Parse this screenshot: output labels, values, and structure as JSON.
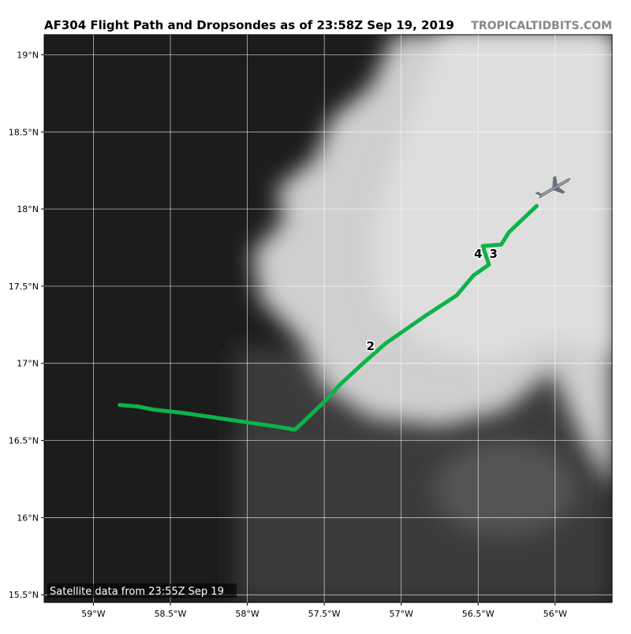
{
  "chart_data": {
    "type": "line",
    "title": "AF304 Flight Path and Dropsondes as of 23:58Z Sep 19, 2019",
    "source": "TROPICALTIDBITS.COM",
    "caption": "Satellite data from 23:55Z Sep 19",
    "x": [
      -58.83,
      -58.71,
      -58.61,
      -58.43,
      -58.22,
      -58.02,
      -57.81,
      -57.69,
      -57.5,
      -57.4,
      -57.27,
      -57.1,
      -56.84,
      -56.64,
      -56.53,
      -56.43,
      -56.47,
      -56.35,
      -56.3,
      -56.12
    ],
    "values": [
      16.73,
      16.72,
      16.7,
      16.68,
      16.65,
      16.62,
      16.59,
      16.57,
      16.75,
      16.86,
      16.98,
      17.13,
      17.31,
      17.44,
      17.57,
      17.64,
      17.76,
      17.77,
      17.85,
      18.02
    ],
    "color": "#0db34a",
    "annotations": [
      {
        "text": "2",
        "x": -57.2,
        "y": 17.11
      },
      {
        "text": "4",
        "x": -56.5,
        "y": 17.71
      },
      {
        "text": "3",
        "x": -56.4,
        "y": 17.71
      }
    ],
    "xlim": [
      -59.32,
      -55.63
    ],
    "ylim": [
      15.45,
      19.13
    ],
    "xticks": [
      {
        "value": -59,
        "label": "59°W"
      },
      {
        "value": -58.5,
        "label": "58.5°W"
      },
      {
        "value": -58,
        "label": "58°W"
      },
      {
        "value": -57.5,
        "label": "57.5°W"
      },
      {
        "value": -57,
        "label": "57°W"
      },
      {
        "value": -56.5,
        "label": "56.5°W"
      },
      {
        "value": -56,
        "label": "56°W"
      }
    ],
    "yticks": [
      {
        "value": 15.5,
        "label": "15.5°N"
      },
      {
        "value": 16,
        "label": "16°N"
      },
      {
        "value": 16.5,
        "label": "16.5°N"
      },
      {
        "value": 17,
        "label": "17°N"
      },
      {
        "value": 17.5,
        "label": "17.5°N"
      },
      {
        "value": 18,
        "label": "18°N"
      },
      {
        "value": 18.5,
        "label": "18.5°N"
      },
      {
        "value": 19,
        "label": "19°N"
      }
    ],
    "grid": true
  }
}
